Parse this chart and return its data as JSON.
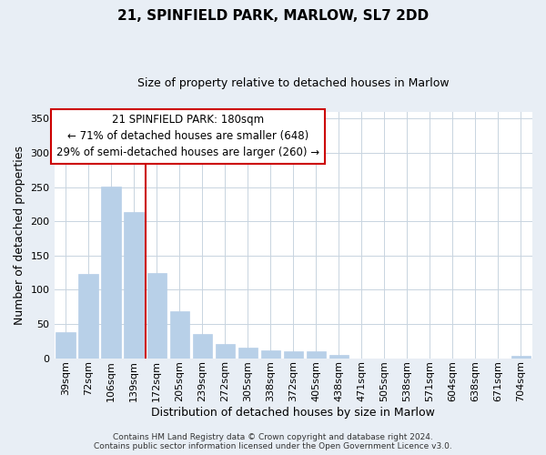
{
  "title": "21, SPINFIELD PARK, MARLOW, SL7 2DD",
  "subtitle": "Size of property relative to detached houses in Marlow",
  "xlabel": "Distribution of detached houses by size in Marlow",
  "ylabel": "Number of detached properties",
  "bar_labels": [
    "39sqm",
    "72sqm",
    "106sqm",
    "139sqm",
    "172sqm",
    "205sqm",
    "239sqm",
    "272sqm",
    "305sqm",
    "338sqm",
    "372sqm",
    "405sqm",
    "438sqm",
    "471sqm",
    "505sqm",
    "538sqm",
    "571sqm",
    "604sqm",
    "638sqm",
    "671sqm",
    "704sqm"
  ],
  "bar_values": [
    38,
    123,
    251,
    213,
    125,
    68,
    35,
    21,
    16,
    12,
    10,
    10,
    5,
    0,
    0,
    0,
    0,
    0,
    0,
    0,
    4
  ],
  "bar_color": "#b8d0e8",
  "bar_edge_color": "#b8d0e8",
  "marker_line_index": 4,
  "marker_line_color": "#cc0000",
  "ylim": [
    0,
    360
  ],
  "yticks": [
    0,
    50,
    100,
    150,
    200,
    250,
    300,
    350
  ],
  "annotation_title": "21 SPINFIELD PARK: 180sqm",
  "annotation_line1": "← 71% of detached houses are smaller (648)",
  "annotation_line2": "29% of semi-detached houses are larger (260) →",
  "annotation_box_facecolor": "#ffffff",
  "annotation_box_edgecolor": "#cc0000",
  "footer_line1": "Contains HM Land Registry data © Crown copyright and database right 2024.",
  "footer_line2": "Contains public sector information licensed under the Open Government Licence v3.0.",
  "background_color": "#e8eef5",
  "plot_background_color": "#ffffff",
  "grid_color": "#c8d4e0",
  "title_fontsize": 11,
  "subtitle_fontsize": 9,
  "ylabel_fontsize": 9,
  "xlabel_fontsize": 9,
  "tick_fontsize": 8,
  "annotation_fontsize": 8.5,
  "footer_fontsize": 6.5
}
